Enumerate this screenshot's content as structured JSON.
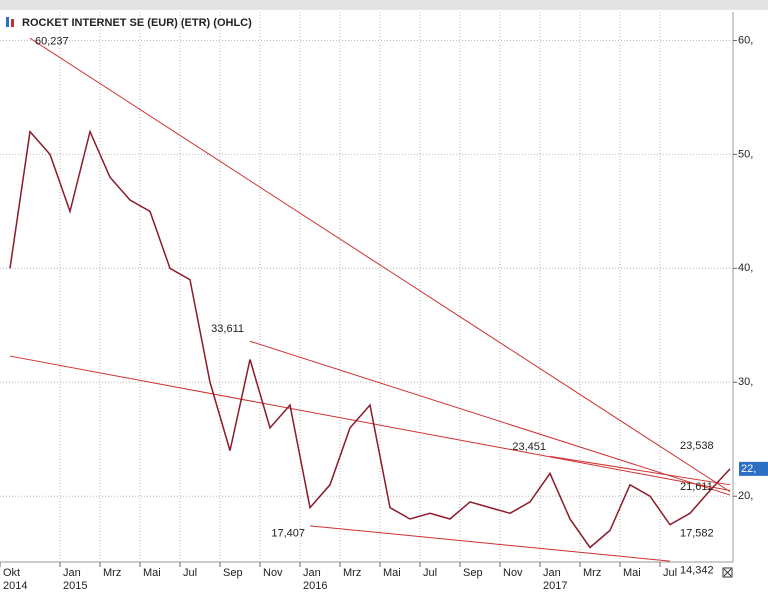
{
  "chart_data": {
    "type": "line",
    "title": "ROCKET INTERNET SE (EUR) (ETR) (OHLC)",
    "x": [
      "2014-10",
      "2014-11",
      "2014-12",
      "2015-01",
      "2015-02",
      "2015-03",
      "2015-04",
      "2015-05",
      "2015-06",
      "2015-07",
      "2015-08",
      "2015-09",
      "2015-10",
      "2015-11",
      "2015-12",
      "2016-01",
      "2016-02",
      "2016-03",
      "2016-04",
      "2016-05",
      "2016-06",
      "2016-07",
      "2016-08",
      "2016-09",
      "2016-10",
      "2016-11",
      "2016-12",
      "2017-01",
      "2017-02",
      "2017-03",
      "2017-04",
      "2017-05",
      "2017-06",
      "2017-07",
      "2017-08",
      "2017-09",
      "2017-10"
    ],
    "series": [
      {
        "name": "ROCKET INTERNET SE",
        "color": "#8b1a2b",
        "values": [
          40,
          52,
          50,
          45,
          52,
          48,
          46,
          45,
          40,
          39,
          30,
          24,
          32,
          26,
          28,
          19,
          21,
          26,
          28,
          19,
          18,
          18.5,
          18,
          19.5,
          19,
          18.5,
          19.5,
          22,
          18,
          15.5,
          17,
          21,
          20,
          17.5,
          18.5,
          20.5,
          22.4
        ]
      }
    ],
    "ylim": [
      14.4,
      62.5
    ],
    "yticks": [
      {
        "value": 20,
        "label": "20,"
      },
      {
        "value": 30,
        "label": "30,"
      },
      {
        "value": 40,
        "label": "40,"
      },
      {
        "value": 50,
        "label": "50,"
      },
      {
        "value": 60,
        "label": "60,"
      }
    ],
    "xticks": [
      {
        "value": "2014-10",
        "label": "Okt",
        "year": "2014"
      },
      {
        "value": "2015-01",
        "label": "Jan",
        "year": "2015"
      },
      {
        "value": "2015-03",
        "label": "Mrz"
      },
      {
        "value": "2015-05",
        "label": "Mai"
      },
      {
        "value": "2015-07",
        "label": "Jul"
      },
      {
        "value": "2015-09",
        "label": "Sep"
      },
      {
        "value": "2015-11",
        "label": "Nov"
      },
      {
        "value": "2016-01",
        "label": "Jan",
        "year": "2016"
      },
      {
        "value": "2016-03",
        "label": "Mrz"
      },
      {
        "value": "2016-05",
        "label": "Mai"
      },
      {
        "value": "2016-07",
        "label": "Jul"
      },
      {
        "value": "2016-09",
        "label": "Sep"
      },
      {
        "value": "2016-11",
        "label": "Nov"
      },
      {
        "value": "2017-01",
        "label": "Jan",
        "year": "2017"
      },
      {
        "value": "2017-03",
        "label": "Mrz"
      },
      {
        "value": "2017-05",
        "label": "Mai"
      },
      {
        "value": "2017-07",
        "label": "Jul"
      }
    ],
    "grid": true,
    "trendlines": [
      {
        "color": "#d03030",
        "x": [
          "2014-11",
          "2017-10"
        ],
        "values": [
          60.2,
          20.4
        ]
      },
      {
        "color": "#d03030",
        "x": [
          "2014-10",
          "2017-10"
        ],
        "values": [
          32.3,
          20.5
        ]
      },
      {
        "color": "#d03030",
        "x": [
          "2015-10",
          "2017-10"
        ],
        "values": [
          33.6,
          20.1
        ]
      },
      {
        "color": "#d03030",
        "x": [
          "2016-01",
          "2017-07"
        ],
        "values": [
          17.4,
          14.3
        ]
      },
      {
        "color": "#d03030",
        "x": [
          "2017-01",
          "2017-10"
        ],
        "values": [
          23.5,
          21.0
        ]
      }
    ],
    "annotations": [
      {
        "x": "2014-11",
        "value": 60.237,
        "label": "60,237"
      },
      {
        "x": "2015-10",
        "value": 33.611,
        "label": "33,611"
      },
      {
        "x": "2016-01",
        "value": 17.407,
        "label": "17,407"
      },
      {
        "x": "2017-01",
        "value": 23.451,
        "label": "23,451"
      },
      {
        "x": "2017-08",
        "value": 23.538,
        "label": "23,538"
      },
      {
        "x": "2017-08",
        "value": 21.611,
        "label": "21,611"
      },
      {
        "x": "2017-08",
        "value": 17.582,
        "label": "17,582"
      },
      {
        "x": "2017-08",
        "value": 14.342,
        "label": "14,342"
      }
    ],
    "last_price": {
      "value": 22.4,
      "label": "22,",
      "color": "#2b6fc4"
    }
  }
}
